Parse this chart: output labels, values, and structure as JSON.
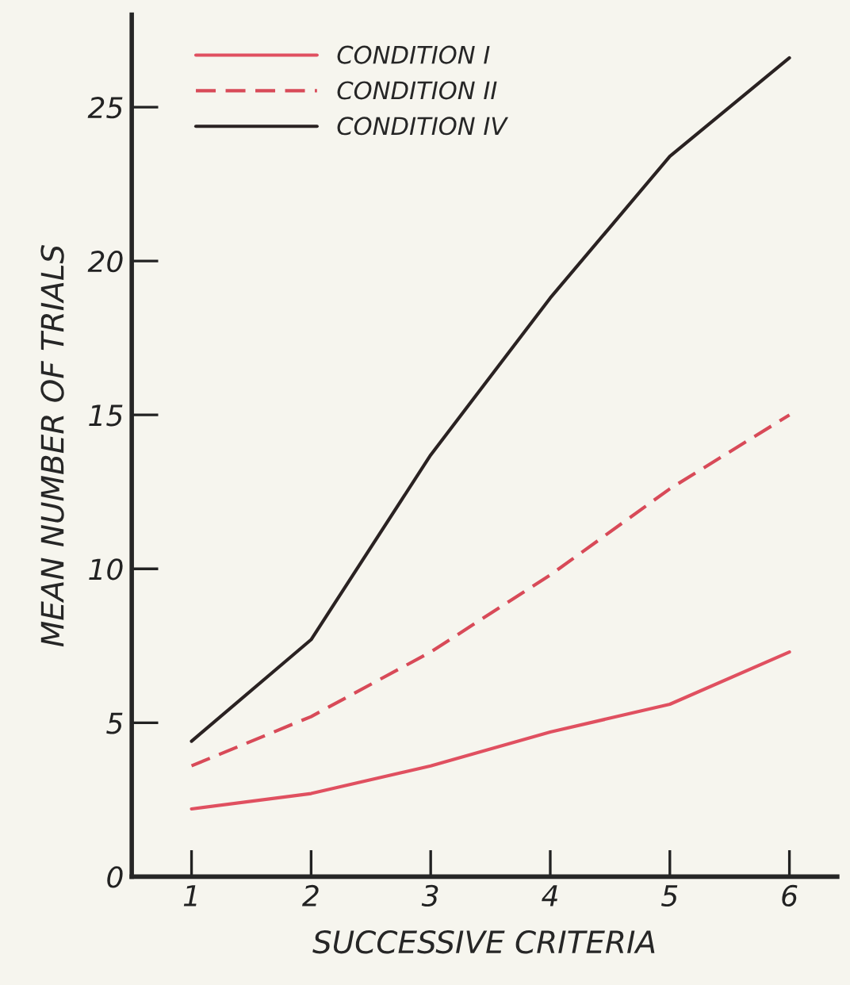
{
  "chart_data": {
    "type": "line",
    "xlabel": "SUCCESSIVE CRITERIA",
    "ylabel": "MEAN NUMBER OF TRIALS",
    "x": [
      1,
      2,
      3,
      4,
      5,
      6
    ],
    "series": [
      {
        "name": "CONDITION I",
        "color": "#e05060",
        "line_style": "solid",
        "values": [
          2.2,
          2.7,
          3.6,
          4.7,
          5.6,
          7.3
        ]
      },
      {
        "name": "CONDITION II",
        "color": "#d84a58",
        "line_style": "dashed",
        "values": [
          3.6,
          5.2,
          7.3,
          9.8,
          12.6,
          15.0
        ]
      },
      {
        "name": "CONDITION IV",
        "color": "#2a2222",
        "line_style": "solid",
        "values": [
          4.4,
          7.7,
          13.7,
          18.8,
          23.4,
          26.6
        ]
      }
    ],
    "xlim": [
      0.5,
      6.4
    ],
    "xticks": [
      1,
      2,
      3,
      4,
      5,
      6
    ],
    "ylim": [
      0,
      28
    ],
    "yticks": [
      0,
      5,
      10,
      15,
      20,
      25
    ],
    "grid": false,
    "legend": "top left",
    "marker": "none"
  }
}
